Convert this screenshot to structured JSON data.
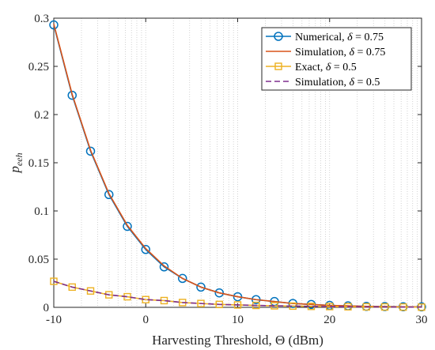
{
  "chart_data": {
    "type": "line",
    "xlabel": "Harvesting Threshold,  Θ (dBm)",
    "ylabel": "p",
    "ylabel_subscript": "eeh",
    "xlim": [
      -10,
      30
    ],
    "ylim": [
      0,
      0.3
    ],
    "x_ticks": [
      "-10",
      "0",
      "10",
      "20",
      "30"
    ],
    "y_ticks": [
      "0",
      "0.05",
      "0.1",
      "0.15",
      "0.2",
      "0.25",
      "0.3"
    ],
    "grid": "minor-x dotted",
    "legend_position": "top-right",
    "x": [
      -10,
      -8,
      -6,
      -4,
      -2,
      0,
      2,
      4,
      6,
      8,
      10,
      12,
      14,
      16,
      18,
      20,
      22,
      24,
      26,
      28,
      30
    ],
    "series": [
      {
        "name_prefix": "Numerical, ",
        "name_delta": "δ",
        "name_value": " = 0.75",
        "color": "#0072bd",
        "style": "solid-circle-markers",
        "values": [
          0.293,
          0.22,
          0.162,
          0.117,
          0.084,
          0.06,
          0.042,
          0.03,
          0.021,
          0.015,
          0.011,
          0.008,
          0.006,
          0.004,
          0.003,
          0.002,
          0.0015,
          0.001,
          0.0008,
          0.0006,
          0.0005
        ]
      },
      {
        "name_prefix": "Simulation, ",
        "name_delta": "δ",
        "name_value": " = 0.75",
        "color": "#d95319",
        "style": "solid",
        "values": [
          0.294,
          0.221,
          0.163,
          0.118,
          0.085,
          0.061,
          0.043,
          0.03,
          0.021,
          0.015,
          0.011,
          0.008,
          0.006,
          0.004,
          0.003,
          0.002,
          0.0015,
          0.001,
          0.0008,
          0.0006,
          0.0005
        ]
      },
      {
        "name_prefix": "Exact, ",
        "name_delta": "δ",
        "name_value": " = 0.5",
        "color": "#edb120",
        "style": "solid-square-markers",
        "values": [
          0.027,
          0.021,
          0.017,
          0.013,
          0.011,
          0.008,
          0.007,
          0.005,
          0.004,
          0.003,
          0.0025,
          0.002,
          0.0016,
          0.0013,
          0.001,
          0.0008,
          0.0006,
          0.0005,
          0.0004,
          0.0003,
          0.0002
        ]
      },
      {
        "name_prefix": "Simulation, ",
        "name_delta": "δ",
        "name_value": " = 0.5",
        "color": "#7e2f8e",
        "style": "dashed",
        "values": [
          0.027,
          0.021,
          0.017,
          0.013,
          0.011,
          0.008,
          0.007,
          0.005,
          0.004,
          0.003,
          0.0025,
          0.002,
          0.0016,
          0.0013,
          0.001,
          0.0008,
          0.0006,
          0.0005,
          0.0004,
          0.0003,
          0.0002
        ]
      }
    ]
  }
}
